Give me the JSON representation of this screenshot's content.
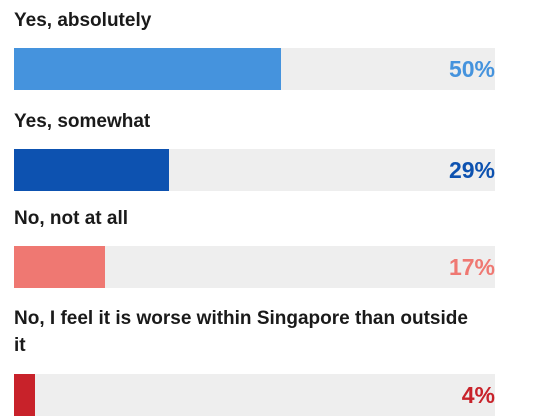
{
  "chart_data": {
    "type": "bar",
    "orientation": "horizontal",
    "categories": [
      "Yes, absolutely",
      "Yes, somewhat",
      "No, not at all",
      "No, I feel it is worse within Singapore than outside it"
    ],
    "values": [
      50,
      29,
      17,
      4
    ],
    "value_labels": [
      "50%",
      "29%",
      "17%",
      "4%"
    ],
    "colors": [
      "#4593dd",
      "#0d52b0",
      "#ef7872",
      "#c8222a"
    ],
    "track_color": "#eeeeee",
    "xlim": [
      0,
      90
    ],
    "grid": false,
    "legend": "none"
  }
}
